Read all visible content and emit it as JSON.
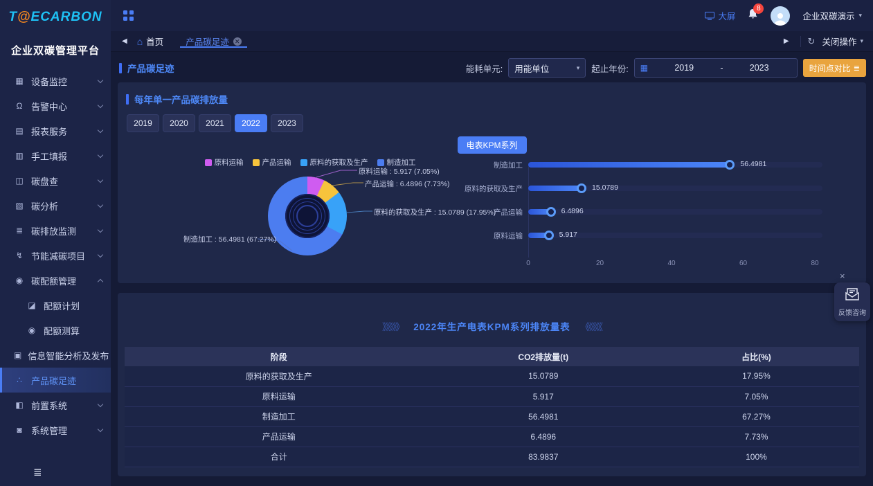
{
  "colors": {
    "accent_blue": "#4a7df5",
    "logo_cyan": "#1ec1f5",
    "logo_orange": "#f5871f",
    "orange_button": "#e9a43e",
    "panel_bg": "#1f2849",
    "sidebar_bg": "#1c2447",
    "badge_red": "#f5453d"
  },
  "sidebar": {
    "logo": {
      "t": "T",
      "at": "@",
      "rest": "ECARBON"
    },
    "platform_name": "企业双碳管理平台",
    "items": [
      {
        "label": "设备监控",
        "icon": "device-monitor-icon",
        "glyph": "▦",
        "chevron": "down"
      },
      {
        "label": "告警中心",
        "icon": "alert-center-icon",
        "glyph": "Ω",
        "chevron": "down"
      },
      {
        "label": "报表服务",
        "icon": "report-service-icon",
        "glyph": "▤",
        "chevron": "down"
      },
      {
        "label": "手工填报",
        "icon": "manual-report-icon",
        "glyph": "▥",
        "chevron": "down"
      },
      {
        "label": "碳盘查",
        "icon": "carbon-inventory-icon",
        "glyph": "◫",
        "chevron": "down"
      },
      {
        "label": "碳分析",
        "icon": "carbon-analysis-icon",
        "glyph": "▧",
        "chevron": "down"
      },
      {
        "label": "碳排放监测",
        "icon": "carbon-emission-monitor-icon",
        "glyph": "≣",
        "chevron": "down"
      },
      {
        "label": "节能减碳项目",
        "icon": "energy-saving-project-icon",
        "glyph": "↯",
        "chevron": "down"
      },
      {
        "label": "碳配额管理",
        "icon": "carbon-quota-icon",
        "glyph": "◉",
        "chevron": "up"
      },
      {
        "label": "配额计划",
        "icon": "quota-plan-icon",
        "glyph": "◪",
        "sub": true
      },
      {
        "label": "配额测算",
        "icon": "quota-calc-icon",
        "glyph": "◉",
        "sub": true
      },
      {
        "label": "信息智能分析及发布",
        "icon": "info-analysis-icon",
        "glyph": "▣"
      },
      {
        "label": "产品碳足迹",
        "icon": "product-footprint-icon",
        "glyph": "∴",
        "active": true
      },
      {
        "label": "前置系统",
        "icon": "front-system-icon",
        "glyph": "◧",
        "chevron": "down"
      },
      {
        "label": "系统管理",
        "icon": "system-admin-icon",
        "glyph": "◙",
        "chevron": "down"
      }
    ]
  },
  "topbar": {
    "bigscreen_label": "大屏",
    "notification_count": "8",
    "tenant_name": "企业双碳演示"
  },
  "tabbar": {
    "back_arrow": "◀",
    "home_label": "首页",
    "home_icon": "⌂",
    "active_tab": "产品碳足迹",
    "forward_arrow": "▶",
    "refresh_icon": "↻",
    "close_op_label": "关闭操作"
  },
  "filters": {
    "page_title": "产品碳足迹",
    "energy_unit_label": "能耗单元:",
    "energy_unit_value": "用能单位",
    "year_range_label": "起止年份:",
    "year_start": "2019",
    "year_separator": "-",
    "year_end": "2023",
    "calendar_icon": "▦",
    "compare_button": "时间点对比",
    "compare_icon": "≣"
  },
  "chart_panel": {
    "section_title": "每年单一产品碳排放量",
    "years": [
      "2019",
      "2020",
      "2021",
      "2022",
      "2023"
    ],
    "active_year": "2022",
    "kpm_button": "电表KPM系列"
  },
  "chart_data": [
    {
      "type": "pie",
      "subtype": "donut",
      "categories": [
        "原料运输",
        "产品运输",
        "原料的获取及生产",
        "制造加工"
      ],
      "values": [
        5.917,
        6.4896,
        15.0789,
        56.4981
      ],
      "percentages": [
        "7.05%",
        "7.73%",
        "17.95%",
        "67.27%"
      ],
      "colors": [
        "#cf5cf0",
        "#f6c33c",
        "#38a2f8",
        "#4c7df0"
      ],
      "labels": [
        "原料运输 : 5.917 (7.05%)",
        "产品运输 : 6.4896 (7.73%)",
        "原料的获取及生产 : 15.0789 (17.95%)",
        "制造加工 : 56.4981 (67.27%)"
      ],
      "legend_position": "top"
    },
    {
      "type": "bar",
      "orientation": "horizontal",
      "categories": [
        "制造加工",
        "原料的获取及生产",
        "产品运输",
        "原料运输"
      ],
      "values": [
        56.4981,
        15.0789,
        6.4896,
        5.917
      ],
      "xlim": [
        0,
        80
      ],
      "xticks": [
        0,
        20,
        40,
        60,
        80
      ],
      "grid": false
    }
  ],
  "table": {
    "decor_left": "》》》》》",
    "title": "2022年生产电表KPM系列排放量表",
    "decor_right": "《《《《《",
    "headers": [
      "阶段",
      "CO2排放量(t)",
      "占比(%)"
    ],
    "rows": [
      [
        "原料的获取及生产",
        "15.0789",
        "17.95%"
      ],
      [
        "原料运输",
        "5.917",
        "7.05%"
      ],
      [
        "制造加工",
        "56.4981",
        "67.27%"
      ],
      [
        "产品运输",
        "6.4896",
        "7.73%"
      ],
      [
        "合计",
        "83.9837",
        "100%"
      ]
    ]
  },
  "feedback": {
    "close_label": "×",
    "label": "反馈咨询"
  }
}
